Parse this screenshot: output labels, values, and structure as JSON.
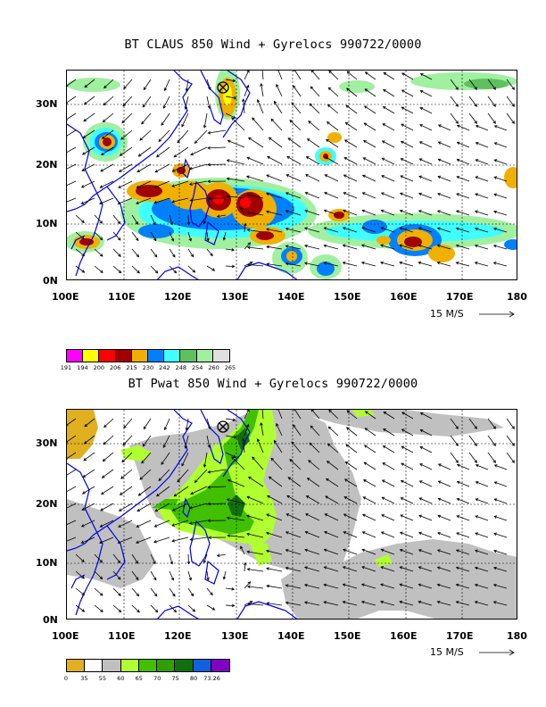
{
  "top": {
    "title": "BT CLAUS 850 Wind + Gyrelocs 990722/0000",
    "lat_labels": [
      "30N",
      "20N",
      "10N",
      "0N"
    ],
    "lon_labels": [
      "100E",
      "110E",
      "120E",
      "130E",
      "140E",
      "150E",
      "160E",
      "170E",
      "180"
    ],
    "ref_vector": "15 M/S",
    "colorbar": {
      "colors": [
        "#ff00ff",
        "#ffff00",
        "#ff0000",
        "#a00000",
        "#f0b000",
        "#0080ff",
        "#40ffff",
        "#60c060",
        "#a0f0a0",
        "#e0e0e0"
      ],
      "labels": [
        "191",
        "194",
        "200",
        "206",
        "215",
        "230",
        "242",
        "248",
        "254",
        "260",
        "265"
      ]
    },
    "gyre_marker": "gyre-location",
    "gyre_lon": 127.5,
    "gyre_lat": 32.7
  },
  "bottom": {
    "title": "BT Pwat 850 Wind + Gyrelocs 990722/0000",
    "lat_labels": [
      "30N",
      "20N",
      "10N",
      "0N"
    ],
    "lon_labels": [
      "100E",
      "110E",
      "120E",
      "130E",
      "140E",
      "150E",
      "160E",
      "170E",
      "180"
    ],
    "ref_vector": "15 M/S",
    "colorbar": {
      "colors": [
        "#e0b020",
        "#ffffff",
        "#c0c0c0",
        "#b0ff30",
        "#40c000",
        "#30a000",
        "#107010",
        "#1060e0",
        "#8000c0"
      ],
      "labels": [
        "0",
        "35",
        "55",
        "60",
        "65",
        "70",
        "75",
        "80",
        "73.26"
      ]
    },
    "gyre_marker": "gyre-location",
    "gyre_lon": 127.5,
    "gyre_lat": 32.7
  }
}
